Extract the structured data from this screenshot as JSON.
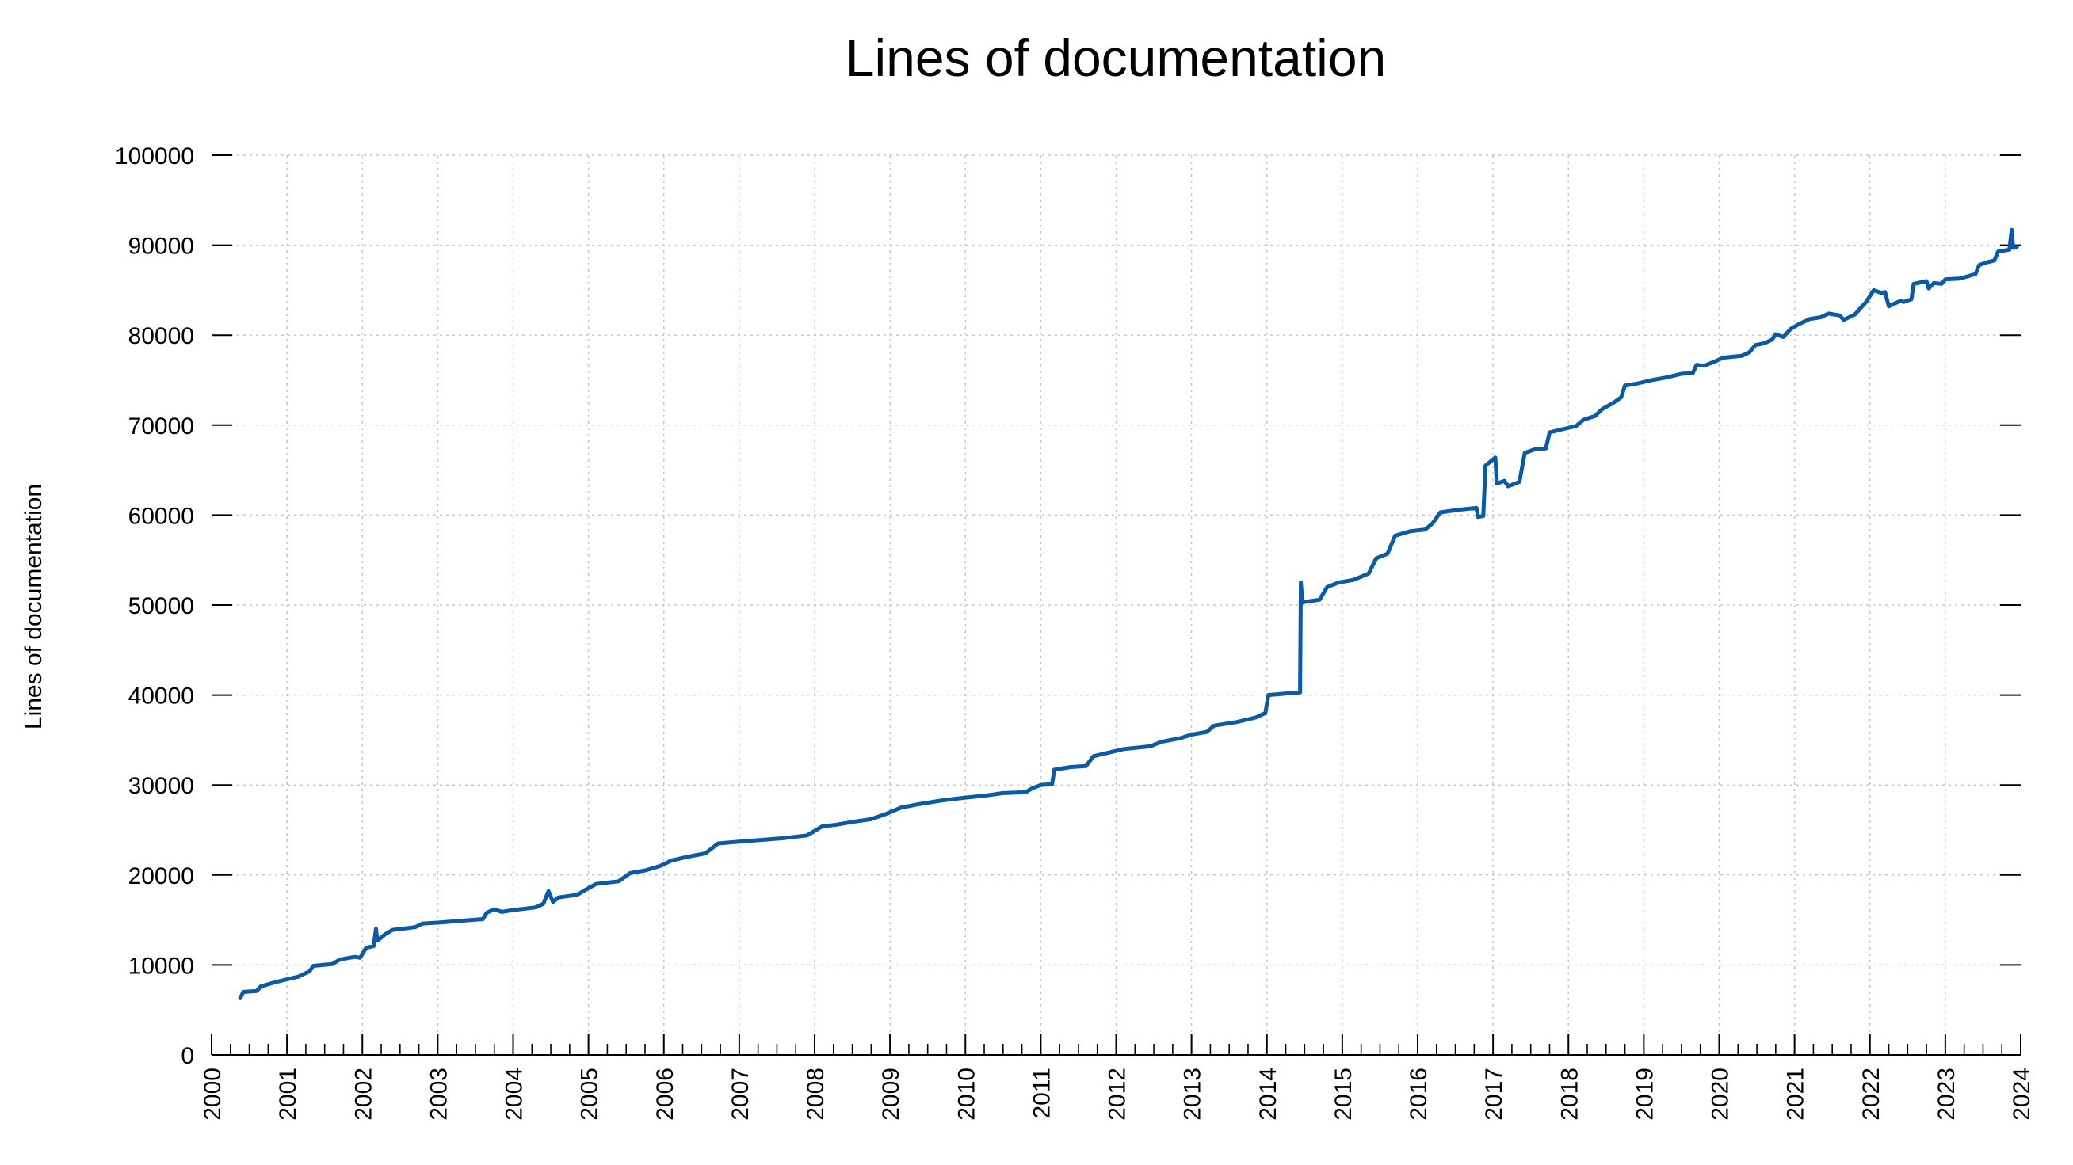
{
  "chart_data": {
    "type": "line",
    "title": "Lines of documentation",
    "xlabel": "",
    "ylabel": "Lines of documentation",
    "xlim": [
      2000,
      2024
    ],
    "ylim": [
      0,
      100000
    ],
    "grid": true,
    "x_tick_labels": [
      "2000",
      "2001",
      "2002",
      "2003",
      "2004",
      "2005",
      "2006",
      "2007",
      "2008",
      "2009",
      "2010",
      "2011",
      "2012",
      "2013",
      "2014",
      "2015",
      "2016",
      "2017",
      "2018",
      "2019",
      "2020",
      "2021",
      "2022",
      "2023",
      "2024"
    ],
    "y_tick_labels": [
      "0",
      "10000",
      "20000",
      "30000",
      "40000",
      "50000",
      "60000",
      "70000",
      "80000",
      "90000",
      "100000"
    ],
    "line_color": "#0a5aa5",
    "series": [
      {
        "points": [
          [
            2000.38,
            6300
          ],
          [
            2000.42,
            7000
          ],
          [
            2000.6,
            7100
          ],
          [
            2000.65,
            7600
          ],
          [
            2000.85,
            8100
          ],
          [
            2001.0,
            8400
          ],
          [
            2001.15,
            8700
          ],
          [
            2001.3,
            9300
          ],
          [
            2001.35,
            9900
          ],
          [
            2001.6,
            10100
          ],
          [
            2001.7,
            10600
          ],
          [
            2001.9,
            10900
          ],
          [
            2001.97,
            10800
          ],
          [
            2002.05,
            11900
          ],
          [
            2002.15,
            12100
          ],
          [
            2002.18,
            14000
          ],
          [
            2002.2,
            12700
          ],
          [
            2002.3,
            13400
          ],
          [
            2002.4,
            13900
          ],
          [
            2002.7,
            14200
          ],
          [
            2002.8,
            14600
          ],
          [
            2003.0,
            14700
          ],
          [
            2003.3,
            14900
          ],
          [
            2003.6,
            15100
          ],
          [
            2003.65,
            15800
          ],
          [
            2003.75,
            16200
          ],
          [
            2003.85,
            15900
          ],
          [
            2004.0,
            16100
          ],
          [
            2004.3,
            16400
          ],
          [
            2004.4,
            16800
          ],
          [
            2004.47,
            18200
          ],
          [
            2004.53,
            17000
          ],
          [
            2004.6,
            17500
          ],
          [
            2004.85,
            17800
          ],
          [
            2004.95,
            18300
          ],
          [
            2005.1,
            19000
          ],
          [
            2005.4,
            19300
          ],
          [
            2005.55,
            20200
          ],
          [
            2005.75,
            20500
          ],
          [
            2005.95,
            21000
          ],
          [
            2006.1,
            21600
          ],
          [
            2006.3,
            22000
          ],
          [
            2006.55,
            22400
          ],
          [
            2006.72,
            23500
          ],
          [
            2007.0,
            23700
          ],
          [
            2007.3,
            23900
          ],
          [
            2007.6,
            24100
          ],
          [
            2007.9,
            24400
          ],
          [
            2008.1,
            25400
          ],
          [
            2008.3,
            25600
          ],
          [
            2008.5,
            25900
          ],
          [
            2008.75,
            26200
          ],
          [
            2008.95,
            26800
          ],
          [
            2009.15,
            27500
          ],
          [
            2009.4,
            27900
          ],
          [
            2009.7,
            28300
          ],
          [
            2010.0,
            28600
          ],
          [
            2010.25,
            28800
          ],
          [
            2010.5,
            29100
          ],
          [
            2010.8,
            29200
          ],
          [
            2010.88,
            29600
          ],
          [
            2011.0,
            30000
          ],
          [
            2011.15,
            30100
          ],
          [
            2011.18,
            31700
          ],
          [
            2011.4,
            32000
          ],
          [
            2011.6,
            32100
          ],
          [
            2011.7,
            33200
          ],
          [
            2011.9,
            33600
          ],
          [
            2012.1,
            34000
          ],
          [
            2012.45,
            34300
          ],
          [
            2012.6,
            34800
          ],
          [
            2012.85,
            35200
          ],
          [
            2013.0,
            35600
          ],
          [
            2013.2,
            35900
          ],
          [
            2013.3,
            36600
          ],
          [
            2013.6,
            37000
          ],
          [
            2013.85,
            37500
          ],
          [
            2013.98,
            38000
          ],
          [
            2014.02,
            40000
          ],
          [
            2014.3,
            40200
          ],
          [
            2014.44,
            40300
          ],
          [
            2014.45,
            52500
          ],
          [
            2014.47,
            50300
          ],
          [
            2014.7,
            50600
          ],
          [
            2014.8,
            52000
          ],
          [
            2014.95,
            52500
          ],
          [
            2015.15,
            52800
          ],
          [
            2015.35,
            53500
          ],
          [
            2015.45,
            55200
          ],
          [
            2015.6,
            55700
          ],
          [
            2015.7,
            57700
          ],
          [
            2015.9,
            58200
          ],
          [
            2016.1,
            58400
          ],
          [
            2016.2,
            59100
          ],
          [
            2016.3,
            60300
          ],
          [
            2016.55,
            60600
          ],
          [
            2016.78,
            60800
          ],
          [
            2016.8,
            59800
          ],
          [
            2016.87,
            59900
          ],
          [
            2016.9,
            65500
          ],
          [
            2017.03,
            66400
          ],
          [
            2017.05,
            63500
          ],
          [
            2017.15,
            63800
          ],
          [
            2017.2,
            63200
          ],
          [
            2017.35,
            63700
          ],
          [
            2017.42,
            66900
          ],
          [
            2017.55,
            67300
          ],
          [
            2017.7,
            67400
          ],
          [
            2017.75,
            69200
          ],
          [
            2017.9,
            69500
          ],
          [
            2018.1,
            69900
          ],
          [
            2018.2,
            70600
          ],
          [
            2018.35,
            71000
          ],
          [
            2018.45,
            71800
          ],
          [
            2018.6,
            72500
          ],
          [
            2018.7,
            73100
          ],
          [
            2018.75,
            74400
          ],
          [
            2018.9,
            74600
          ],
          [
            2019.1,
            75000
          ],
          [
            2019.3,
            75300
          ],
          [
            2019.5,
            75700
          ],
          [
            2019.65,
            75800
          ],
          [
            2019.7,
            76700
          ],
          [
            2019.8,
            76600
          ],
          [
            2019.95,
            77100
          ],
          [
            2020.05,
            77500
          ],
          [
            2020.3,
            77700
          ],
          [
            2020.4,
            78100
          ],
          [
            2020.48,
            78900
          ],
          [
            2020.6,
            79100
          ],
          [
            2020.7,
            79500
          ],
          [
            2020.75,
            80100
          ],
          [
            2020.85,
            79800
          ],
          [
            2020.95,
            80700
          ],
          [
            2021.05,
            81200
          ],
          [
            2021.2,
            81800
          ],
          [
            2021.35,
            82000
          ],
          [
            2021.45,
            82400
          ],
          [
            2021.6,
            82200
          ],
          [
            2021.65,
            81700
          ],
          [
            2021.8,
            82300
          ],
          [
            2021.95,
            83700
          ],
          [
            2022.05,
            85000
          ],
          [
            2022.15,
            84700
          ],
          [
            2022.2,
            84800
          ],
          [
            2022.25,
            83200
          ],
          [
            2022.4,
            83800
          ],
          [
            2022.45,
            83700
          ],
          [
            2022.55,
            84000
          ],
          [
            2022.58,
            85700
          ],
          [
            2022.75,
            86000
          ],
          [
            2022.78,
            85200
          ],
          [
            2022.85,
            85800
          ],
          [
            2022.95,
            85700
          ],
          [
            2023.0,
            86200
          ],
          [
            2023.2,
            86300
          ],
          [
            2023.4,
            86800
          ],
          [
            2023.45,
            87800
          ],
          [
            2023.55,
            88100
          ],
          [
            2023.65,
            88300
          ],
          [
            2023.7,
            89300
          ],
          [
            2023.85,
            89500
          ],
          [
            2023.88,
            91700
          ],
          [
            2023.9,
            89700
          ],
          [
            2023.95,
            89800
          ]
        ]
      }
    ]
  }
}
